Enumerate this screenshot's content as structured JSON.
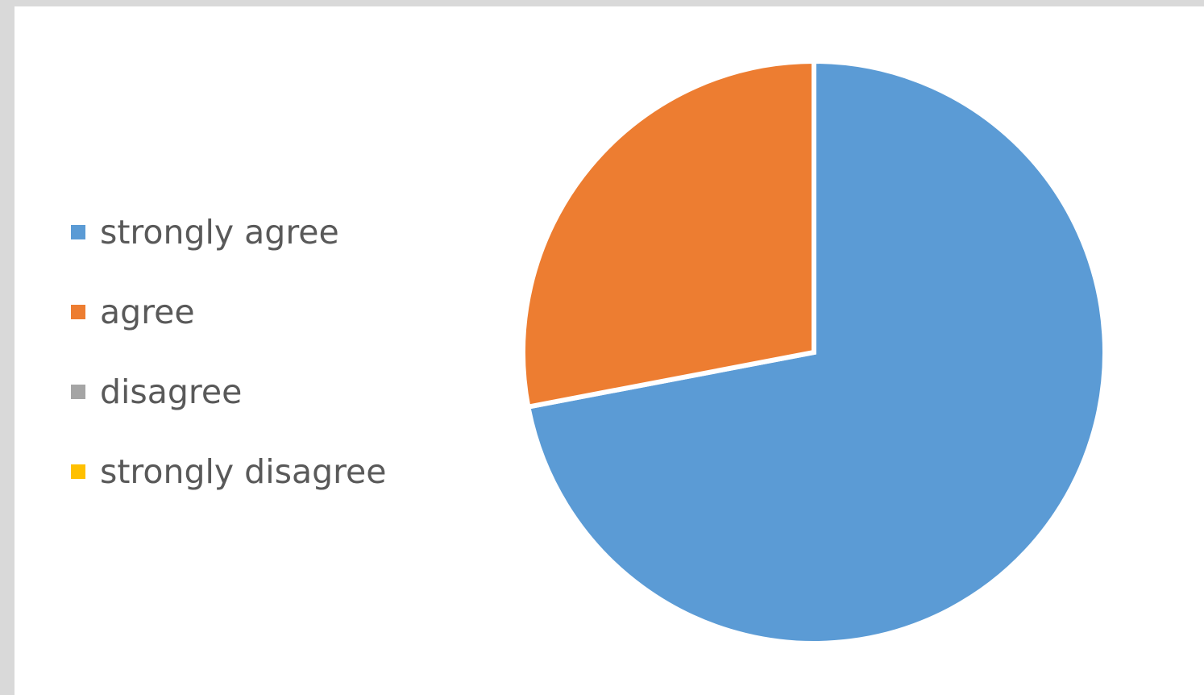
{
  "chart_data": {
    "type": "pie",
    "title": "",
    "categories": [
      "strongly agree",
      "agree",
      "disagree",
      "strongly disagree"
    ],
    "values": [
      72,
      28,
      0,
      0
    ],
    "colors": [
      "#5b9bd5",
      "#ed7d31",
      "#a5a5a5",
      "#ffc000"
    ],
    "legend_position": "left",
    "slice_border": "#ffffff"
  }
}
